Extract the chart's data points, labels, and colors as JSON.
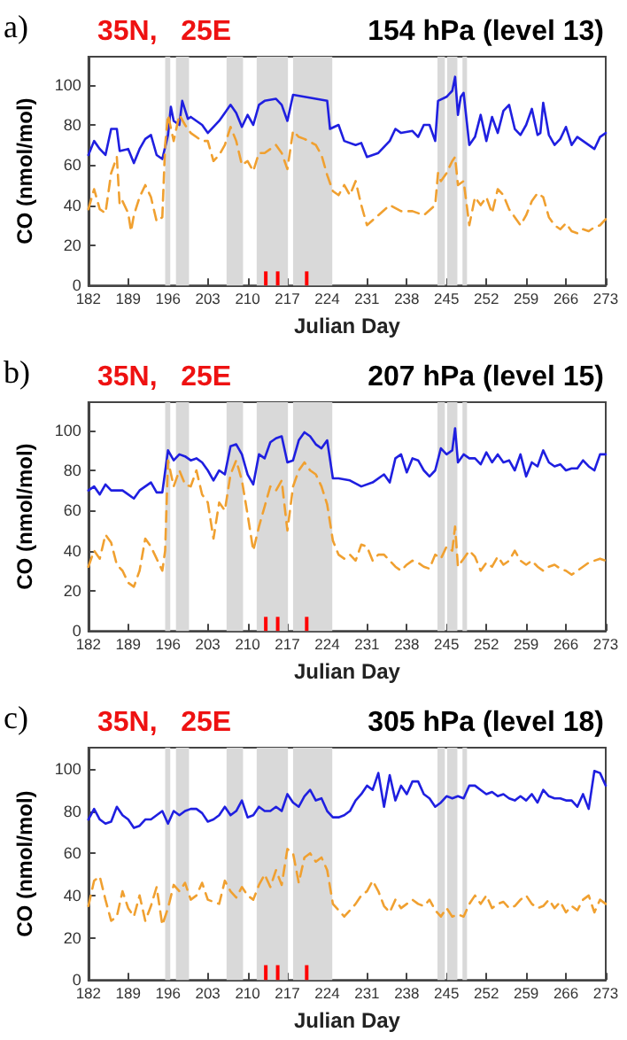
{
  "chart_data": [
    {
      "type": "line",
      "title": "154 hPa (level 13)",
      "subtitle": "35N,   25E",
      "annotations": [
        "a)"
      ],
      "xlabel": "Julian Day",
      "ylabel": "CO (nmol/mol)",
      "xlim": [
        182,
        273
      ],
      "xticks": [
        182,
        189,
        196,
        203,
        210,
        217,
        224,
        231,
        238,
        245,
        252,
        259,
        266,
        273
      ],
      "ylim": [
        0,
        114
      ],
      "yticks": [
        0,
        20,
        40,
        60,
        80,
        100
      ],
      "marker": "none",
      "bands": [
        {
          "axis": "x",
          "from": 195.5,
          "to": 196.4,
          "color": "#d9d9d9"
        },
        {
          "axis": "x",
          "from": 197.4,
          "to": 199.7,
          "color": "#d9d9d9"
        },
        {
          "axis": "x",
          "from": 206.3,
          "to": 209.2,
          "color": "#d9d9d9"
        },
        {
          "axis": "x",
          "from": 211.6,
          "to": 217.1,
          "color": "#d9d9d9"
        },
        {
          "axis": "x",
          "from": 218,
          "to": 224.9,
          "color": "#d9d9d9"
        },
        {
          "axis": "x",
          "from": 243.4,
          "to": 244.7,
          "color": "#d9d9d9"
        },
        {
          "axis": "x",
          "from": 245.1,
          "to": 246.9,
          "color": "#d9d9d9"
        },
        {
          "axis": "x",
          "from": 247.8,
          "to": 248.6,
          "color": "#d9d9d9"
        }
      ],
      "series": [
        {
          "color": "#1f1fe0",
          "line_style": "solid",
          "x": [
            182,
            183,
            184,
            185,
            186,
            187,
            187.5,
            189,
            190,
            191,
            192,
            193,
            194,
            195,
            196,
            196.5,
            197,
            198,
            198.5,
            199.5,
            200,
            202,
            203,
            205,
            207,
            208,
            209,
            210,
            211,
            212,
            213,
            215,
            216,
            217,
            218,
            220,
            222,
            224,
            224.5,
            226,
            227,
            229,
            230,
            231,
            233,
            235,
            236,
            237,
            239,
            240,
            241,
            242,
            243,
            243.5,
            245,
            246,
            246.5,
            247,
            247.5,
            248,
            249,
            250,
            251,
            252,
            253,
            254,
            255,
            256,
            257,
            258,
            259,
            260,
            261,
            261.5,
            262,
            263,
            264,
            265,
            266,
            267,
            268,
            269,
            270,
            271,
            272,
            273
          ],
          "values": [
            65,
            72,
            68,
            65,
            78,
            78,
            67,
            68,
            61,
            68,
            73,
            75,
            65,
            63,
            75,
            89,
            82,
            80,
            92,
            83,
            84,
            80,
            76,
            82,
            90,
            86,
            79,
            85,
            80,
            90,
            92,
            93,
            90,
            82,
            95,
            94,
            93,
            92,
            78,
            80,
            72,
            70,
            71,
            64,
            66,
            72,
            78,
            76,
            77,
            74,
            80,
            80,
            72,
            92,
            94,
            97,
            104,
            85,
            94,
            96,
            70,
            74,
            85,
            72,
            84,
            76,
            87,
            90,
            78,
            75,
            80,
            88,
            75,
            76,
            91,
            75,
            70,
            73,
            79,
            70,
            74,
            72,
            70,
            68,
            74,
            76
          ]
        },
        {
          "color": "#f0a030",
          "line_style": "dashed",
          "x": [
            182,
            183,
            184,
            185,
            186,
            187,
            187.5,
            188,
            189,
            189.5,
            190,
            191,
            192,
            193,
            194,
            195,
            195.5,
            196,
            197,
            198,
            199,
            200,
            202,
            203,
            204,
            205,
            206,
            207,
            208,
            209,
            210,
            211,
            212,
            213,
            215,
            216,
            217,
            218,
            219,
            220,
            222,
            223,
            224,
            225,
            226,
            227,
            228,
            229,
            230,
            231,
            233,
            235,
            237,
            239,
            241,
            243,
            243.5,
            244,
            245,
            246,
            246.5,
            247,
            248,
            249,
            250,
            251,
            252,
            253,
            254,
            255,
            256,
            257,
            258,
            259,
            260,
            261,
            262,
            263,
            264,
            265,
            266,
            267,
            268,
            269,
            270,
            271,
            272,
            273
          ],
          "values": [
            38,
            48,
            38,
            36,
            56,
            64,
            40,
            42,
            36,
            27,
            35,
            44,
            50,
            44,
            32,
            34,
            70,
            85,
            72,
            85,
            80,
            76,
            72,
            72,
            62,
            65,
            70,
            79,
            72,
            60,
            62,
            57,
            66,
            66,
            70,
            66,
            58,
            77,
            74,
            73,
            70,
            65,
            55,
            47,
            45,
            50,
            45,
            52,
            40,
            30,
            35,
            40,
            37,
            37,
            35,
            40,
            56,
            52,
            56,
            62,
            64,
            50,
            52,
            30,
            44,
            40,
            44,
            36,
            48,
            45,
            38,
            34,
            30,
            35,
            42,
            46,
            44,
            34,
            30,
            28,
            31,
            27,
            26,
            28,
            27,
            29,
            30,
            33
          ]
        },
        {
          "type": "bar",
          "color": "#ff0000",
          "x": [
            213.2,
            215.3,
            220.4
          ],
          "values": [
            7,
            7,
            7
          ]
        }
      ]
    },
    {
      "type": "line",
      "title": "207 hPa (level 15)",
      "subtitle": "35N,   25E",
      "annotations": [
        "b)"
      ],
      "xlabel": "Julian Day",
      "ylabel": "CO (nmol/mol)",
      "xlim": [
        182,
        273
      ],
      "xticks": [
        182,
        189,
        196,
        203,
        210,
        217,
        224,
        231,
        238,
        245,
        252,
        259,
        266,
        273
      ],
      "ylim": [
        0,
        114
      ],
      "yticks": [
        0,
        20,
        40,
        60,
        80,
        100
      ],
      "marker": "none",
      "bands": [
        {
          "axis": "x",
          "from": 195.5,
          "to": 196.4,
          "color": "#d9d9d9"
        },
        {
          "axis": "x",
          "from": 197.4,
          "to": 199.7,
          "color": "#d9d9d9"
        },
        {
          "axis": "x",
          "from": 206.3,
          "to": 209.2,
          "color": "#d9d9d9"
        },
        {
          "axis": "x",
          "from": 211.6,
          "to": 217.1,
          "color": "#d9d9d9"
        },
        {
          "axis": "x",
          "from": 218,
          "to": 224.9,
          "color": "#d9d9d9"
        },
        {
          "axis": "x",
          "from": 243.4,
          "to": 244.7,
          "color": "#d9d9d9"
        },
        {
          "axis": "x",
          "from": 245.1,
          "to": 246.9,
          "color": "#d9d9d9"
        },
        {
          "axis": "x",
          "from": 247.8,
          "to": 248.6,
          "color": "#d9d9d9"
        }
      ],
      "series": [
        {
          "color": "#1f1fe0",
          "line_style": "solid",
          "x": [
            182,
            183,
            184,
            185,
            186,
            188,
            189,
            190,
            191,
            192,
            193,
            194,
            195,
            196,
            197,
            198,
            199,
            200,
            201,
            202,
            203,
            204,
            205,
            206,
            207,
            208,
            209,
            210,
            211,
            212,
            213,
            214,
            215,
            216,
            217,
            218,
            219,
            220,
            221,
            222,
            223,
            224,
            225,
            226,
            228,
            230,
            232,
            234,
            235,
            236,
            237,
            238,
            239,
            240,
            241,
            242,
            243,
            244,
            245,
            246,
            246.5,
            247,
            248,
            249,
            250,
            251,
            252,
            253,
            254,
            255,
            256,
            257,
            258,
            259,
            260,
            261,
            262,
            263,
            264,
            265,
            266,
            267,
            268,
            269,
            270,
            271,
            272,
            273
          ],
          "values": [
            70,
            72,
            68,
            73,
            70,
            70,
            68,
            66,
            70,
            72,
            74,
            69,
            69,
            90,
            85,
            88,
            87,
            85,
            86,
            84,
            80,
            75,
            80,
            78,
            92,
            93,
            88,
            78,
            73,
            88,
            86,
            94,
            96,
            97,
            84,
            85,
            95,
            99,
            97,
            93,
            91,
            95,
            76,
            76,
            75,
            72,
            74,
            78,
            74,
            86,
            88,
            79,
            86,
            85,
            80,
            77,
            80,
            91,
            88,
            90,
            101,
            84,
            88,
            86,
            86,
            83,
            89,
            84,
            88,
            84,
            85,
            80,
            88,
            77,
            84,
            82,
            90,
            84,
            82,
            83,
            80,
            81,
            81,
            85,
            82,
            80,
            88,
            88
          ]
        },
        {
          "color": "#f0a030",
          "line_style": "dashed",
          "x": [
            182,
            183,
            184,
            185,
            186,
            187,
            188,
            189,
            190,
            191,
            192,
            193,
            194,
            195,
            195.5,
            196,
            197,
            198,
            199,
            200,
            201,
            202,
            203,
            204,
            205,
            206,
            207,
            208,
            209,
            210,
            211,
            212,
            213,
            214,
            215,
            216,
            217,
            218,
            219,
            220,
            221,
            222,
            223,
            224,
            225,
            226,
            227,
            228,
            229,
            230,
            231,
            232,
            233,
            234,
            235,
            236,
            237,
            238,
            239,
            240,
            241,
            242,
            243,
            244,
            245,
            246,
            246.5,
            247,
            248,
            249,
            250,
            251,
            252,
            253,
            254,
            255,
            256,
            257,
            258,
            259,
            260,
            261,
            262,
            263,
            264,
            265,
            266,
            267,
            268,
            269,
            270,
            271,
            272,
            273
          ],
          "values": [
            32,
            40,
            36,
            48,
            44,
            33,
            30,
            24,
            22,
            30,
            46,
            42,
            36,
            30,
            40,
            85,
            72,
            80,
            73,
            72,
            80,
            68,
            64,
            46,
            64,
            60,
            78,
            85,
            75,
            58,
            40,
            52,
            62,
            72,
            70,
            75,
            50,
            72,
            80,
            84,
            80,
            78,
            72,
            63,
            45,
            38,
            36,
            38,
            35,
            43,
            42,
            35,
            38,
            38,
            35,
            32,
            30,
            33,
            35,
            34,
            32,
            31,
            38,
            36,
            42,
            40,
            52,
            32,
            36,
            40,
            37,
            30,
            34,
            32,
            37,
            33,
            35,
            40,
            35,
            33,
            35,
            32,
            30,
            32,
            33,
            31,
            30,
            28,
            30,
            32,
            34,
            35,
            36,
            35
          ]
        },
        {
          "type": "bar",
          "color": "#ff0000",
          "x": [
            213.2,
            215.3,
            220.4
          ],
          "values": [
            7,
            7,
            7
          ]
        }
      ]
    },
    {
      "type": "line",
      "title": "305 hPa (level 18)",
      "subtitle": "35N,   25E",
      "annotations": [
        "c)"
      ],
      "xlabel": "Julian Day",
      "ylabel": "CO (nmol/mol)",
      "xlim": [
        182,
        273
      ],
      "xticks": [
        182,
        189,
        196,
        203,
        210,
        217,
        224,
        231,
        238,
        245,
        252,
        259,
        266,
        273
      ],
      "ylim": [
        0,
        110
      ],
      "yticks": [
        0,
        20,
        40,
        60,
        80,
        100
      ],
      "marker": "none",
      "bands": [
        {
          "axis": "x",
          "from": 195.5,
          "to": 196.4,
          "color": "#d9d9d9"
        },
        {
          "axis": "x",
          "from": 197.4,
          "to": 199.7,
          "color": "#d9d9d9"
        },
        {
          "axis": "x",
          "from": 206.3,
          "to": 209.2,
          "color": "#d9d9d9"
        },
        {
          "axis": "x",
          "from": 211.6,
          "to": 217.1,
          "color": "#d9d9d9"
        },
        {
          "axis": "x",
          "from": 218,
          "to": 224.9,
          "color": "#d9d9d9"
        },
        {
          "axis": "x",
          "from": 243.4,
          "to": 244.7,
          "color": "#d9d9d9"
        },
        {
          "axis": "x",
          "from": 245.1,
          "to": 246.9,
          "color": "#d9d9d9"
        },
        {
          "axis": "x",
          "from": 247.8,
          "to": 248.6,
          "color": "#d9d9d9"
        }
      ],
      "series": [
        {
          "color": "#1f1fe0",
          "line_style": "solid",
          "x": [
            182,
            183,
            184,
            185,
            186,
            187,
            188,
            189,
            190,
            191,
            192,
            193,
            194,
            195,
            196,
            197,
            198,
            199,
            200,
            201,
            202,
            203,
            204,
            205,
            206,
            207,
            208,
            209,
            210,
            211,
            212,
            213,
            214,
            215,
            216,
            217,
            218,
            219,
            220,
            221,
            222,
            223,
            224,
            225,
            226,
            227,
            228,
            229,
            230,
            231,
            232,
            233,
            234,
            235,
            236,
            237,
            238,
            239,
            240,
            241,
            242,
            243,
            244,
            245,
            246,
            247,
            248,
            249,
            250,
            251,
            252,
            253,
            254,
            255,
            256,
            257,
            258,
            259,
            260,
            261,
            262,
            263,
            264,
            265,
            266,
            267,
            268,
            269,
            270,
            271,
            272,
            273
          ],
          "values": [
            76,
            81,
            76,
            74,
            75,
            82,
            78,
            76,
            72,
            73,
            76,
            76,
            78,
            80,
            74,
            80,
            78,
            80,
            81,
            81,
            79,
            75,
            76,
            78,
            82,
            78,
            80,
            85,
            77,
            78,
            82,
            80,
            80,
            82,
            80,
            88,
            84,
            82,
            87,
            90,
            85,
            86,
            80,
            77,
            77,
            78,
            80,
            85,
            88,
            92,
            90,
            98,
            82,
            97,
            85,
            92,
            88,
            94,
            94,
            88,
            86,
            82,
            84,
            87,
            86,
            87,
            86,
            92,
            92,
            90,
            88,
            89,
            87,
            88,
            86,
            85,
            87,
            85,
            88,
            84,
            90,
            87,
            86,
            86,
            85,
            85,
            82,
            88,
            81,
            99,
            98,
            92
          ]
        },
        {
          "color": "#f0a030",
          "line_style": "dashed",
          "x": [
            182,
            183,
            184,
            185,
            186,
            187,
            188,
            189,
            190,
            191,
            192,
            193,
            194,
            195,
            196,
            197,
            198,
            199,
            200,
            201,
            202,
            203,
            204,
            205,
            206,
            207,
            208,
            209,
            210,
            211,
            212,
            213,
            214,
            215,
            216,
            217,
            218,
            219,
            220,
            221,
            222,
            223,
            224,
            225,
            226,
            227,
            228,
            229,
            230,
            231,
            232,
            233,
            234,
            235,
            236,
            237,
            238,
            239,
            240,
            241,
            242,
            243,
            244,
            245,
            246,
            247,
            248,
            249,
            250,
            251,
            252,
            253,
            254,
            255,
            256,
            257,
            258,
            259,
            260,
            261,
            262,
            263,
            264,
            265,
            266,
            267,
            268,
            269,
            270,
            271,
            272,
            273
          ],
          "values": [
            35,
            47,
            49,
            38,
            28,
            30,
            42,
            34,
            30,
            40,
            28,
            35,
            44,
            26,
            34,
            45,
            42,
            46,
            38,
            40,
            46,
            38,
            37,
            36,
            47,
            42,
            39,
            44,
            40,
            38,
            45,
            50,
            44,
            52,
            45,
            62,
            60,
            46,
            58,
            60,
            56,
            58,
            52,
            36,
            33,
            30,
            33,
            36,
            40,
            42,
            47,
            42,
            35,
            32,
            38,
            34,
            36,
            38,
            36,
            35,
            38,
            33,
            30,
            34,
            30,
            31,
            30,
            36,
            40,
            36,
            40,
            34,
            36,
            37,
            34,
            35,
            38,
            40,
            36,
            34,
            35,
            38,
            34,
            37,
            32,
            35,
            33,
            38,
            40,
            32,
            38,
            36
          ]
        },
        {
          "type": "bar",
          "color": "#ff0000",
          "x": [
            213.2,
            215.3,
            220.4
          ],
          "values": [
            7,
            7,
            7
          ]
        }
      ]
    }
  ]
}
